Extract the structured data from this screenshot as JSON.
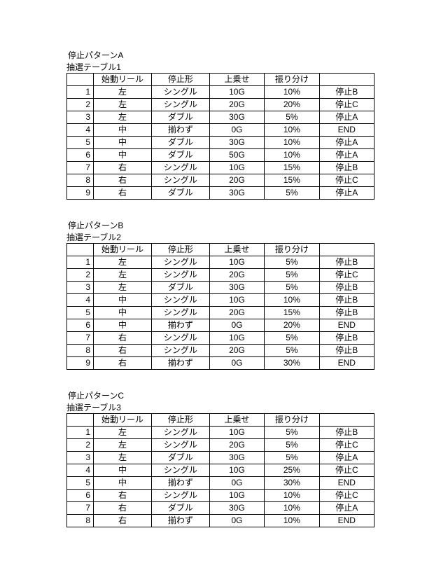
{
  "headers": [
    "始動リール",
    "停止形",
    "上乗せ",
    "振り分け"
  ],
  "sections": [
    {
      "pattern_title": "停止パターンA",
      "subtitle": "抽選テーブル1",
      "rows": [
        [
          "1",
          "左",
          "シングル",
          "10G",
          "10%",
          "停止B"
        ],
        [
          "2",
          "左",
          "シングル",
          "20G",
          "20%",
          "停止C"
        ],
        [
          "3",
          "左",
          "ダブル",
          "30G",
          "5%",
          "停止A"
        ],
        [
          "4",
          "中",
          "揃わず",
          "0G",
          "10%",
          "END"
        ],
        [
          "5",
          "中",
          "ダブル",
          "30G",
          "10%",
          "停止A"
        ],
        [
          "6",
          "中",
          "ダブル",
          "50G",
          "10%",
          "停止A"
        ],
        [
          "7",
          "右",
          "シングル",
          "10G",
          "15%",
          "停止B"
        ],
        [
          "8",
          "右",
          "シングル",
          "20G",
          "15%",
          "停止C"
        ],
        [
          "9",
          "右",
          "ダブル",
          "30G",
          "5%",
          "停止A"
        ]
      ]
    },
    {
      "pattern_title": "停止パターンB",
      "subtitle": "抽選テーブル2",
      "rows": [
        [
          "1",
          "左",
          "シングル",
          "10G",
          "5%",
          "停止B"
        ],
        [
          "2",
          "左",
          "シングル",
          "20G",
          "5%",
          "停止C"
        ],
        [
          "3",
          "左",
          "ダブル",
          "30G",
          "5%",
          "停止B"
        ],
        [
          "4",
          "中",
          "シングル",
          "10G",
          "10%",
          "停止B"
        ],
        [
          "5",
          "中",
          "シングル",
          "20G",
          "15%",
          "停止B"
        ],
        [
          "6",
          "中",
          "揃わず",
          "0G",
          "20%",
          "END"
        ],
        [
          "7",
          "右",
          "シングル",
          "10G",
          "5%",
          "停止B"
        ],
        [
          "8",
          "右",
          "シングル",
          "20G",
          "5%",
          "停止B"
        ],
        [
          "9",
          "右",
          "揃わず",
          "0G",
          "30%",
          "END"
        ]
      ]
    },
    {
      "pattern_title": "停止パターンC",
      "subtitle": "抽選テーブル3",
      "rows": [
        [
          "1",
          "左",
          "シングル",
          "10G",
          "5%",
          "停止B"
        ],
        [
          "2",
          "左",
          "シングル",
          "20G",
          "5%",
          "停止C"
        ],
        [
          "3",
          "左",
          "ダブル",
          "30G",
          "5%",
          "停止A"
        ],
        [
          "4",
          "中",
          "シングル",
          "10G",
          "25%",
          "停止C"
        ],
        [
          "5",
          "中",
          "揃わず",
          "0G",
          "30%",
          "END"
        ],
        [
          "6",
          "右",
          "シングル",
          "10G",
          "10%",
          "停止C"
        ],
        [
          "7",
          "右",
          "ダブル",
          "30G",
          "10%",
          "停止A"
        ],
        [
          "8",
          "右",
          "揃わず",
          "0G",
          "10%",
          "END"
        ]
      ]
    }
  ]
}
